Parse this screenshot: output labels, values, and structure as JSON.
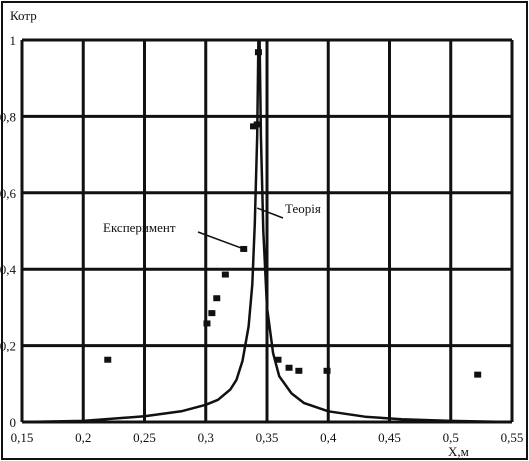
{
  "chart_data": {
    "type": "scatter",
    "title": "",
    "ylabel": "Котр",
    "xlabel": "X,м",
    "xlim": [
      0.15,
      0.55
    ],
    "ylim": [
      0,
      1
    ],
    "grid": true,
    "x_ticks": [
      "0,15",
      "0,2",
      "0,25",
      "0,3",
      "0,35",
      "0,4",
      "0,45",
      "0,5",
      "0,55"
    ],
    "x_tick_values": [
      0.15,
      0.2,
      0.25,
      0.3,
      0.35,
      0.4,
      0.45,
      0.5,
      0.55
    ],
    "y_ticks": [
      "0",
      "0,2",
      "0,4",
      "0,6",
      "0,8",
      "1"
    ],
    "y_tick_values": [
      0,
      0.2,
      0.4,
      0.6,
      0.8,
      1.0
    ],
    "series": [
      {
        "name": "Експеримент",
        "kind": "scatter",
        "color": "#111111",
        "points": [
          {
            "x": 0.22,
            "y": 0.163
          },
          {
            "x": 0.301,
            "y": 0.258
          },
          {
            "x": 0.305,
            "y": 0.285
          },
          {
            "x": 0.309,
            "y": 0.324
          },
          {
            "x": 0.316,
            "y": 0.386
          },
          {
            "x": 0.331,
            "y": 0.453
          },
          {
            "x": 0.339,
            "y": 0.774
          },
          {
            "x": 0.342,
            "y": 0.779
          },
          {
            "x": 0.343,
            "y": 0.968
          },
          {
            "x": 0.359,
            "y": 0.163
          },
          {
            "x": 0.368,
            "y": 0.142
          },
          {
            "x": 0.376,
            "y": 0.134
          },
          {
            "x": 0.399,
            "y": 0.134
          },
          {
            "x": 0.522,
            "y": 0.124
          }
        ]
      },
      {
        "name": "Теорія",
        "kind": "line",
        "color": "#111111",
        "points": [
          {
            "x": 0.15,
            "y": 0.0
          },
          {
            "x": 0.2,
            "y": 0.003
          },
          {
            "x": 0.25,
            "y": 0.015
          },
          {
            "x": 0.28,
            "y": 0.028
          },
          {
            "x": 0.3,
            "y": 0.045
          },
          {
            "x": 0.31,
            "y": 0.058
          },
          {
            "x": 0.32,
            "y": 0.085
          },
          {
            "x": 0.325,
            "y": 0.11
          },
          {
            "x": 0.33,
            "y": 0.16
          },
          {
            "x": 0.335,
            "y": 0.25
          },
          {
            "x": 0.338,
            "y": 0.36
          },
          {
            "x": 0.34,
            "y": 0.52
          },
          {
            "x": 0.342,
            "y": 0.75
          },
          {
            "x": 0.343,
            "y": 1.0
          },
          {
            "x": 0.344,
            "y": 1.0
          },
          {
            "x": 0.345,
            "y": 0.75
          },
          {
            "x": 0.347,
            "y": 0.5
          },
          {
            "x": 0.35,
            "y": 0.3
          },
          {
            "x": 0.355,
            "y": 0.18
          },
          {
            "x": 0.36,
            "y": 0.12
          },
          {
            "x": 0.37,
            "y": 0.075
          },
          {
            "x": 0.38,
            "y": 0.05
          },
          {
            "x": 0.4,
            "y": 0.028
          },
          {
            "x": 0.43,
            "y": 0.014
          },
          {
            "x": 0.46,
            "y": 0.007
          },
          {
            "x": 0.5,
            "y": 0.003
          },
          {
            "x": 0.55,
            "y": 0.0
          }
        ]
      }
    ],
    "annotations": [
      {
        "text": "Експеримент",
        "points_to": {
          "x": 0.331,
          "y": 0.453
        }
      },
      {
        "text": "Теорія",
        "points_to": {
          "x": 0.342,
          "y": 0.56
        }
      }
    ]
  }
}
